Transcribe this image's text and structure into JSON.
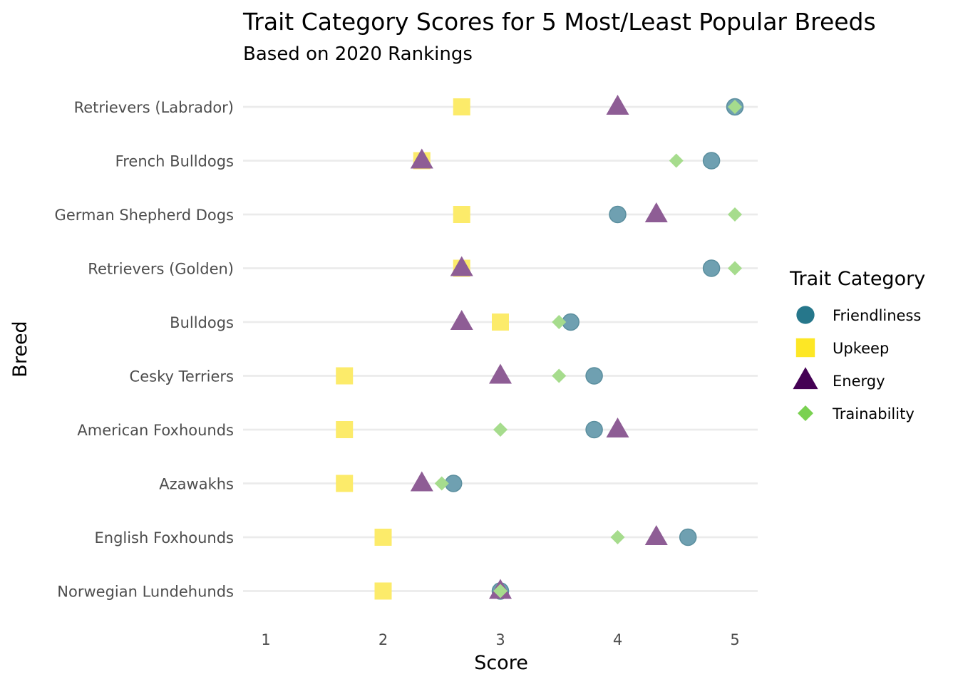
{
  "chart_data": {
    "type": "scatter",
    "title": "Trait Category Scores for 5 Most/Least Popular Breeds",
    "subtitle": "Based on 2020 Rankings",
    "xlabel": "Score",
    "ylabel": "Breed",
    "xlim": [
      1,
      5
    ],
    "x_ticks": [
      "1",
      "2",
      "3",
      "4",
      "5"
    ],
    "categories": [
      "Retrievers (Labrador)",
      "French Bulldogs",
      "German Shepherd Dogs",
      "Retrievers (Golden)",
      "Bulldogs",
      "Cesky Terriers",
      "American Foxhounds",
      "Azawakhs",
      "English Foxhounds",
      "Norwegian Lundehunds"
    ],
    "grid": "horizontal",
    "legend": {
      "title": "Trait Category",
      "position": "right"
    },
    "series": [
      {
        "name": "Friendliness",
        "shape": "circle",
        "color": "#21908C",
        "values": [
          5,
          4.8,
          4,
          4.8,
          3.6,
          3.8,
          3.8,
          2.6,
          4.6,
          3
        ]
      },
      {
        "name": "Upkeep",
        "shape": "square",
        "color": "#FDE725",
        "values": [
          2.67,
          2.33,
          2.67,
          2.67,
          3,
          1.67,
          1.67,
          1.67,
          2,
          2
        ]
      },
      {
        "name": "Energy",
        "shape": "triangle",
        "color": "#440154",
        "values": [
          4,
          2.33,
          4.33,
          2.67,
          2.67,
          3,
          4,
          2.33,
          4.33,
          3
        ]
      },
      {
        "name": "Trainability",
        "shape": "diamond",
        "color": "#7AD151",
        "values": [
          5,
          4.5,
          5,
          5,
          3.5,
          3.5,
          3,
          2.5,
          4,
          3
        ]
      }
    ],
    "point_colors": {
      "Friendliness": "#6FA0B1",
      "Upkeep": "#FCEB6A",
      "Energy": "#8E5D95",
      "Trainability": "#A6DC8D"
    },
    "legend_colors": {
      "Friendliness": "#26778B",
      "Upkeep": "#FDE725",
      "Energy": "#440154",
      "Trainability": "#7AD151"
    }
  }
}
